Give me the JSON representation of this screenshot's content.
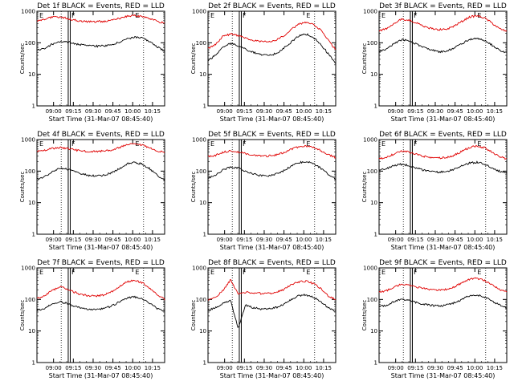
{
  "colors": {
    "events": "#000000",
    "lld": "#e00000"
  },
  "chart_data": [
    {
      "type": "line",
      "title": "Det 1f BLACK = Events, RED = LLD",
      "xlabel": "Start Time (31-Mar-07 08:45:40)",
      "ylabel": "Counts/sec",
      "yscale": "log",
      "ylim": [
        1,
        1000
      ],
      "yticks": [
        "1",
        "10",
        "100",
        "1000"
      ],
      "xticks": [
        "09:00",
        "09:15",
        "09:30",
        "09:45",
        "10:00",
        "10:15"
      ],
      "markers": [
        "E",
        "F",
        "E"
      ],
      "series": [
        {
          "color": "red",
          "values": [
            500,
            560,
            640,
            660,
            600,
            520,
            480,
            470,
            470,
            480,
            520,
            600,
            690,
            720,
            680,
            580,
            480,
            420
          ]
        },
        {
          "color": "black",
          "values": [
            58,
            65,
            90,
            110,
            108,
            95,
            85,
            80,
            78,
            80,
            88,
            105,
            135,
            150,
            140,
            110,
            75,
            55
          ]
        }
      ]
    },
    {
      "type": "line",
      "title": "Det 2f BLACK = Events, RED = LLD",
      "xlabel": "Start Time (31-Mar-07 08:45:40)",
      "ylabel": "Counts/sec",
      "yscale": "log",
      "ylim": [
        1,
        1000
      ],
      "yticks": [
        "1",
        "10",
        "100",
        "1000"
      ],
      "xticks": [
        "09:00",
        "09:15",
        "09:30",
        "09:45",
        "10:00",
        "10:15"
      ],
      "markers": [
        "E",
        "F",
        "E"
      ],
      "series": [
        {
          "color": "red",
          "values": [
            65,
            90,
            160,
            190,
            170,
            140,
            120,
            110,
            110,
            120,
            160,
            260,
            380,
            440,
            380,
            250,
            120,
            60
          ]
        },
        {
          "color": "black",
          "values": [
            28,
            40,
            75,
            95,
            80,
            62,
            50,
            42,
            40,
            45,
            65,
            100,
            160,
            190,
            150,
            90,
            45,
            22
          ]
        }
      ]
    },
    {
      "type": "line",
      "title": "Det 3f BLACK = Events, RED = LLD",
      "xlabel": "Start Time (31-Mar-07 08:45:40)",
      "ylabel": "Counts/sec",
      "yscale": "log",
      "ylim": [
        1,
        1000
      ],
      "yticks": [
        "1",
        "10",
        "100",
        "1000"
      ],
      "xticks": [
        "09:00",
        "09:15",
        "09:30",
        "09:45",
        "10:00",
        "10:15"
      ],
      "markers": [
        "E",
        "F",
        "E"
      ],
      "series": [
        {
          "color": "red",
          "values": [
            240,
            280,
            420,
            560,
            520,
            420,
            330,
            280,
            260,
            270,
            340,
            470,
            650,
            720,
            620,
            430,
            280,
            230
          ]
        },
        {
          "color": "black",
          "values": [
            55,
            62,
            95,
            125,
            115,
            90,
            70,
            58,
            52,
            55,
            68,
            92,
            125,
            140,
            120,
            85,
            58,
            48
          ]
        }
      ]
    },
    {
      "type": "line",
      "title": "Det 4f BLACK = Events, RED = LLD",
      "xlabel": "Start Time (31-Mar-07 08:45:40)",
      "ylabel": "Counts/sec",
      "yscale": "log",
      "ylim": [
        1,
        1000
      ],
      "yticks": [
        "1",
        "10",
        "100",
        "1000"
      ],
      "xticks": [
        "09:00",
        "09:15",
        "09:30",
        "09:45",
        "10:00",
        "10:15"
      ],
      "markers": [
        "E",
        "F",
        "E"
      ],
      "series": [
        {
          "color": "red",
          "values": [
            420,
            450,
            520,
            560,
            530,
            470,
            430,
            420,
            420,
            430,
            470,
            560,
            680,
            720,
            660,
            540,
            430,
            400
          ]
        },
        {
          "color": "black",
          "values": [
            55,
            65,
            95,
            125,
            115,
            95,
            82,
            72,
            70,
            75,
            90,
            120,
            170,
            190,
            165,
            120,
            75,
            50
          ]
        }
      ]
    },
    {
      "type": "line",
      "title": "Det 5f BLACK = Events, RED = LLD",
      "xlabel": "Start Time (31-Mar-07 08:45:40)",
      "ylabel": "Counts/sec",
      "yscale": "log",
      "ylim": [
        1,
        1000
      ],
      "yticks": [
        "1",
        "10",
        "100",
        "1000"
      ],
      "xticks": [
        "09:00",
        "09:15",
        "09:30",
        "09:45",
        "10:00",
        "10:15"
      ],
      "markers": [
        "E",
        "F",
        "E"
      ],
      "series": [
        {
          "color": "red",
          "values": [
            280,
            320,
            400,
            440,
            410,
            360,
            320,
            300,
            300,
            320,
            380,
            480,
            580,
            620,
            560,
            450,
            330,
            270
          ]
        },
        {
          "color": "black",
          "values": [
            60,
            75,
            110,
            135,
            125,
            100,
            82,
            72,
            70,
            80,
            100,
            140,
            185,
            200,
            175,
            125,
            80,
            55
          ]
        }
      ]
    },
    {
      "type": "line",
      "title": "Det 6f BLACK = Events, RED = LLD",
      "xlabel": "Start Time (31-Mar-07 08:45:40)",
      "ylabel": "Counts/sec",
      "yscale": "log",
      "ylim": [
        1,
        1000
      ],
      "yticks": [
        "1",
        "10",
        "100",
        "1000"
      ],
      "xticks": [
        "09:00",
        "09:15",
        "09:30",
        "09:45",
        "10:00",
        "10:15"
      ],
      "markers": [
        "E",
        "F",
        "E"
      ],
      "series": [
        {
          "color": "red",
          "values": [
            250,
            270,
            350,
            430,
            400,
            340,
            290,
            270,
            260,
            270,
            320,
            420,
            560,
            620,
            550,
            400,
            290,
            240
          ]
        },
        {
          "color": "black",
          "values": [
            110,
            120,
            150,
            165,
            150,
            125,
            105,
            95,
            92,
            98,
            115,
            145,
            180,
            190,
            170,
            130,
            100,
            85
          ]
        }
      ]
    },
    {
      "type": "line",
      "title": "Det 7f BLACK = Events, RED = LLD",
      "xlabel": "Start Time (31-Mar-07 08:45:40)",
      "ylabel": "Counts/sec",
      "yscale": "log",
      "ylim": [
        1,
        1000
      ],
      "yticks": [
        "1",
        "10",
        "100",
        "1000"
      ],
      "xticks": [
        "09:00",
        "09:15",
        "09:30",
        "09:45",
        "10:00",
        "10:15"
      ],
      "markers": [
        "E",
        "F",
        "E"
      ],
      "series": [
        {
          "color": "red",
          "values": [
            110,
            130,
            190,
            250,
            220,
            170,
            140,
            130,
            130,
            140,
            180,
            260,
            360,
            400,
            340,
            230,
            140,
            100
          ]
        },
        {
          "color": "black",
          "values": [
            45,
            52,
            70,
            85,
            75,
            60,
            52,
            48,
            48,
            52,
            62,
            85,
            110,
            120,
            105,
            75,
            52,
            42
          ]
        }
      ]
    },
    {
      "type": "line",
      "title": "Det 8f BLACK = Events, RED = LLD",
      "xlabel": "Start Time (31-Mar-07 08:45:40)",
      "ylabel": "Counts/sec",
      "yscale": "log",
      "ylim": [
        1,
        1000
      ],
      "yticks": [
        "1",
        "10",
        "100",
        "1000"
      ],
      "xticks": [
        "09:00",
        "09:15",
        "09:30",
        "09:45",
        "10:00",
        "10:15"
      ],
      "markers": [
        "E",
        "F",
        "E"
      ],
      "series": [
        {
          "color": "red",
          "values": [
            100,
            120,
            190,
            420,
            150,
            170,
            160,
            155,
            155,
            165,
            200,
            280,
            360,
            380,
            320,
            220,
            130,
            100
          ]
        },
        {
          "color": "black",
          "values": [
            45,
            55,
            75,
            95,
            12,
            65,
            55,
            50,
            50,
            55,
            68,
            95,
            130,
            140,
            120,
            85,
            55,
            42
          ]
        }
      ]
    },
    {
      "type": "line",
      "title": "Det 9f BLACK = Events, RED = LLD",
      "xlabel": "Start Time (31-Mar-07 08:45:40)",
      "ylabel": "Counts/sec",
      "yscale": "log",
      "ylim": [
        1,
        1000
      ],
      "yticks": [
        "1",
        "10",
        "100",
        "1000"
      ],
      "xticks": [
        "09:00",
        "09:15",
        "09:30",
        "09:45",
        "10:00",
        "10:15"
      ],
      "markers": [
        "E",
        "F",
        "E"
      ],
      "series": [
        {
          "color": "red",
          "values": [
            170,
            190,
            250,
            310,
            290,
            250,
            220,
            205,
            200,
            210,
            250,
            330,
            430,
            470,
            410,
            300,
            210,
            170
          ]
        },
        {
          "color": "black",
          "values": [
            60,
            65,
            85,
            100,
            92,
            80,
            70,
            65,
            62,
            66,
            78,
            100,
            130,
            140,
            122,
            90,
            68,
            55
          ]
        }
      ]
    }
  ]
}
